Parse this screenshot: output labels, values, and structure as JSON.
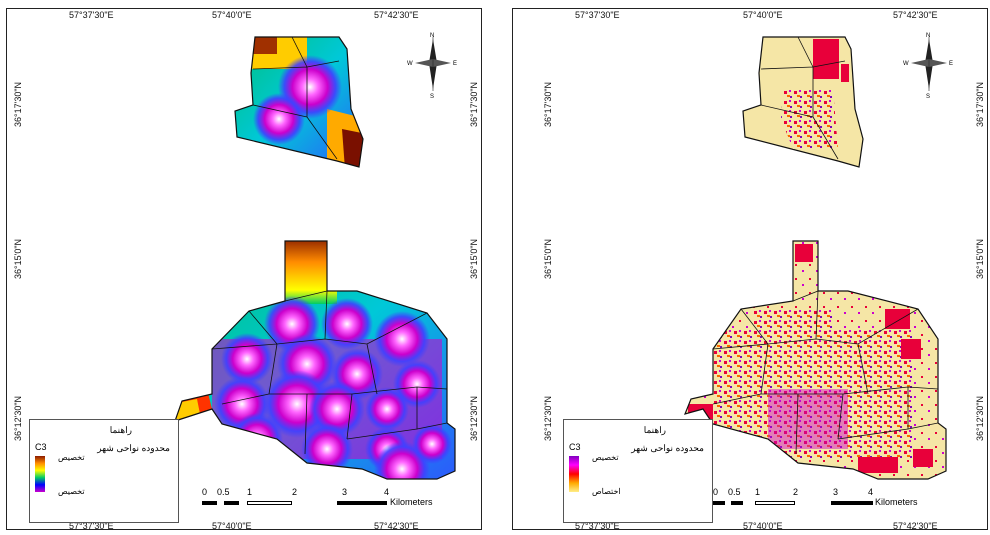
{
  "maps": [
    {
      "id": "left",
      "top_ticks": [
        "57°37'30\"E",
        "57°40'0\"E",
        "57°42'30\"E"
      ],
      "bottom_ticks": [
        "57°37'30\"E",
        "57°40'0\"E",
        "57°42'30\"E"
      ],
      "left_ticks": [
        "36°17'30\"N",
        "36°15'0\"N",
        "36°12'30\"N"
      ],
      "right_ticks": [
        "36°17'30\"N",
        "36°15'0\"N",
        "36°12'30\"N"
      ],
      "legend": {
        "title": "راهنما",
        "subtitle": "محدوده نواحی شهر",
        "code": "C3",
        "high": "تخصیص",
        "low": "تخصیص",
        "ramp_colors": [
          "#8b1a00",
          "#ff8c00",
          "#ffff00",
          "#00cc66",
          "#0000ff",
          "#cc00cc"
        ]
      },
      "scale": {
        "labels": [
          "0",
          "0.5",
          "1",
          "2",
          "3",
          "4"
        ],
        "unit": "Kilometers"
      },
      "north": {
        "n": "N",
        "e": "E",
        "w": "W",
        "s": "S"
      }
    },
    {
      "id": "right",
      "top_ticks": [
        "57°37'30\"E",
        "57°40'0\"E",
        "57°42'30\"E"
      ],
      "bottom_ticks": [
        "57°37'30\"E",
        "57°40'0\"E",
        "57°42'30\"E"
      ],
      "left_ticks": [
        "36°17'30\"N",
        "36°15'0\"N",
        "36°12'30\"N"
      ],
      "right_ticks": [
        "36°17'30\"N",
        "36°15'0\"N",
        "36°12'30\"N"
      ],
      "legend": {
        "title": "راهنما",
        "subtitle": "محدوده نواحی شهر",
        "code": "C3",
        "high": "تخصیص",
        "low": "اختصاص",
        "ramp_colors": [
          "#8000c0",
          "#ff00ff",
          "#ff0000",
          "#ffaa00",
          "#ffee88"
        ]
      },
      "scale": {
        "labels": [
          "0",
          "0.5",
          "1",
          "2",
          "3",
          "4"
        ],
        "unit": "Kilometers"
      },
      "north": {
        "n": "N",
        "e": "E",
        "w": "W",
        "s": "S"
      }
    }
  ],
  "colors": {
    "land": "#f5e6a6",
    "border": "#111111",
    "hot": "#e8003a"
  }
}
